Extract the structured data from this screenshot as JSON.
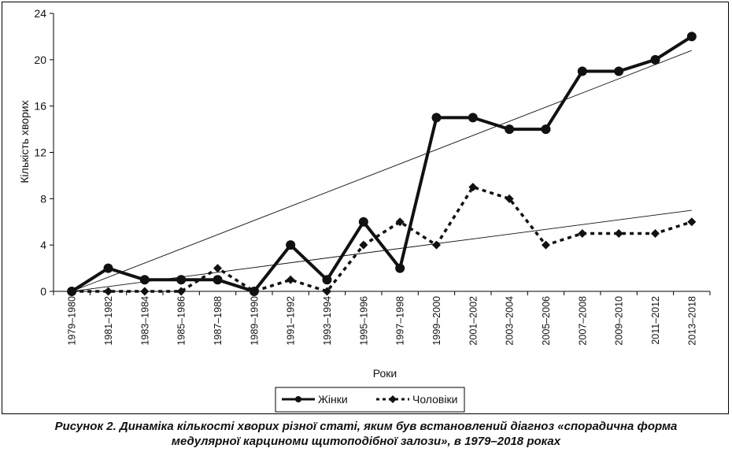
{
  "chart_data": {
    "type": "line",
    "categories": [
      "1979–1980",
      "1981–1982",
      "1983–1984",
      "1985–1986",
      "1987–1988",
      "1989–1990",
      "1991–1992",
      "1993–1994",
      "1995–1996",
      "1997–1998",
      "1999–2000",
      "2001–2002",
      "2003–2004",
      "2005–2006",
      "2007–2008",
      "2009–2010",
      "2011–2012",
      "2013–2018"
    ],
    "series": [
      {
        "name": "Жінки",
        "values": [
          0,
          2,
          1,
          1,
          1,
          0,
          4,
          1,
          6,
          2,
          15,
          15,
          14,
          14,
          19,
          19,
          20,
          22
        ],
        "style": "solid",
        "marker": "circle",
        "trendline": {
          "start": 0,
          "end": 20.8
        }
      },
      {
        "name": "Чоловіки",
        "values": [
          0,
          0,
          0,
          0,
          2,
          0,
          1,
          0,
          4,
          6,
          4,
          9,
          8,
          4,
          5,
          5,
          5,
          6
        ],
        "style": "dashed",
        "marker": "diamond",
        "trendline": {
          "start": 0,
          "end": 7.0
        }
      }
    ],
    "title": "",
    "xlabel": "Роки",
    "ylabel": "Кількість хворих",
    "ylim": [
      0,
      24
    ],
    "yticks": [
      "0",
      "4",
      "8",
      "12",
      "16",
      "20",
      "24"
    ],
    "grid": false,
    "legend_position": "bottom-center",
    "colors": {
      "line": "#111111",
      "trend": "#111111"
    }
  },
  "caption": {
    "line1": "Рисунок 2. Динаміка кількості хворих різної статі, яким був встановлений діагноз «спорадична форма",
    "line2": "медулярної карциноми щитоподібної залози», в 1979–2018 роках"
  }
}
